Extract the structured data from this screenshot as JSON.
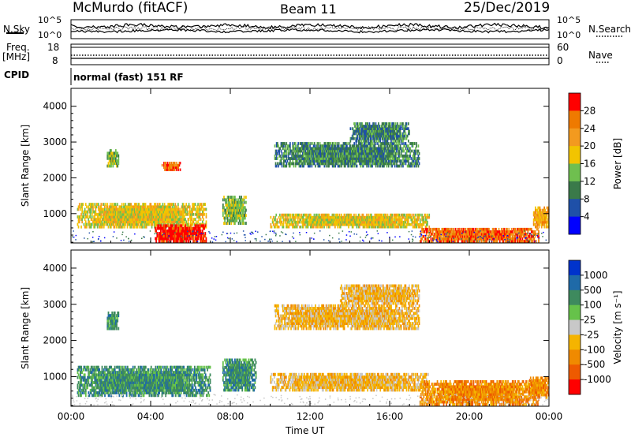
{
  "header": {
    "station": "McMurdo (fitACF)",
    "beam": "Beam 11",
    "date": "25/Dec/2019"
  },
  "noise_panel": {
    "left_label": "N.Sky",
    "right_label": "N.Search",
    "ticks_left": [
      "10^5",
      "10^0"
    ],
    "ticks_right": [
      "10^5",
      "10^0"
    ]
  },
  "freq_panel": {
    "left_label_1": "Freq.",
    "left_label_2": "[MHz]",
    "ticks_left": [
      "18",
      "8"
    ],
    "right_label": "Nave",
    "ticks_right": [
      "60",
      "0"
    ]
  },
  "cpid_panel": {
    "label": "CPID",
    "value": "normal (fast) 151 RF"
  },
  "chart_data": [
    {
      "type": "heatmap",
      "name": "power",
      "ylabel": "Slant Range [km]",
      "yticks": [
        "1000",
        "2000",
        "3000",
        "4000"
      ],
      "ylim": [
        180,
        4500
      ],
      "colorbar_label": "Power [dB]",
      "colorbar_ticks": [
        "4",
        "8",
        "12",
        "16",
        "20",
        "24",
        "28"
      ],
      "colorbar_colors": [
        "#0000ff",
        "#1f50a8",
        "#3a7a4a",
        "#6fbf4f",
        "#f2c400",
        "#f39a1f",
        "#ef7a00",
        "#ff0000"
      ],
      "echo_regions": [
        {
          "t": [
            1.8,
            2.4
          ],
          "r": [
            2300,
            2800
          ],
          "level": 3
        },
        {
          "t": [
            4.5,
            5.5
          ],
          "r": [
            2200,
            2450
          ],
          "level": 6
        },
        {
          "t": [
            0.3,
            6.8
          ],
          "r": [
            600,
            1300
          ],
          "level": 4
        },
        {
          "t": [
            4.2,
            6.8
          ],
          "r": [
            200,
            700
          ],
          "level": 7
        },
        {
          "t": [
            7.6,
            8.8
          ],
          "r": [
            700,
            1500
          ],
          "level": 3
        },
        {
          "t": [
            10.2,
            17.5
          ],
          "r": [
            2300,
            3000
          ],
          "level": 2
        },
        {
          "t": [
            14.0,
            17.0
          ],
          "r": [
            3000,
            3550
          ],
          "level": 2
        },
        {
          "t": [
            10.0,
            18.0
          ],
          "r": [
            600,
            1000
          ],
          "level": 4
        },
        {
          "t": [
            17.5,
            23.5
          ],
          "r": [
            200,
            600
          ],
          "level": 6
        },
        {
          "t": [
            23.2,
            24.0
          ],
          "r": [
            600,
            1200
          ],
          "level": 5
        }
      ]
    },
    {
      "type": "heatmap",
      "name": "velocity",
      "ylabel": "Slant Range [km]",
      "yticks": [
        "1000",
        "2000",
        "3000",
        "4000"
      ],
      "ylim": [
        180,
        4500
      ],
      "colorbar_label": "Velocity [m s^-1]",
      "colorbar_ticks": [
        "1000",
        "500",
        "100",
        "25",
        "-25",
        "-100",
        "-500",
        "-1000"
      ],
      "colorbar_colors": [
        "#0033cc",
        "#1f6aa8",
        "#3e8a5e",
        "#66c24a",
        "#c8c8c8",
        "#f5b400",
        "#f08a00",
        "#ee5a00",
        "#ff0000"
      ],
      "echo_regions": [
        {
          "t": [
            1.8,
            2.4
          ],
          "r": [
            2300,
            2800
          ],
          "level": 2
        },
        {
          "t": [
            0.3,
            7.0
          ],
          "r": [
            450,
            1300
          ],
          "level": 2
        },
        {
          "t": [
            7.6,
            9.3
          ],
          "r": [
            600,
            1500
          ],
          "level": 2
        },
        {
          "t": [
            10.2,
            17.5
          ],
          "r": [
            2300,
            3000
          ],
          "level": 5
        },
        {
          "t": [
            13.5,
            17.5
          ],
          "r": [
            3000,
            3550
          ],
          "level": 5
        },
        {
          "t": [
            10.0,
            18.0
          ],
          "r": [
            600,
            1100
          ],
          "level": 5
        },
        {
          "t": [
            17.5,
            23.5
          ],
          "r": [
            200,
            900
          ],
          "level": 6
        },
        {
          "t": [
            23.0,
            24.0
          ],
          "r": [
            400,
            1000
          ],
          "level": 6
        }
      ]
    }
  ],
  "x_axis": {
    "label": "Time UT",
    "ticks": [
      "00:00",
      "04:00",
      "08:00",
      "12:00",
      "16:00",
      "20:00",
      "00:00"
    ],
    "range_hours": [
      0,
      24
    ]
  }
}
